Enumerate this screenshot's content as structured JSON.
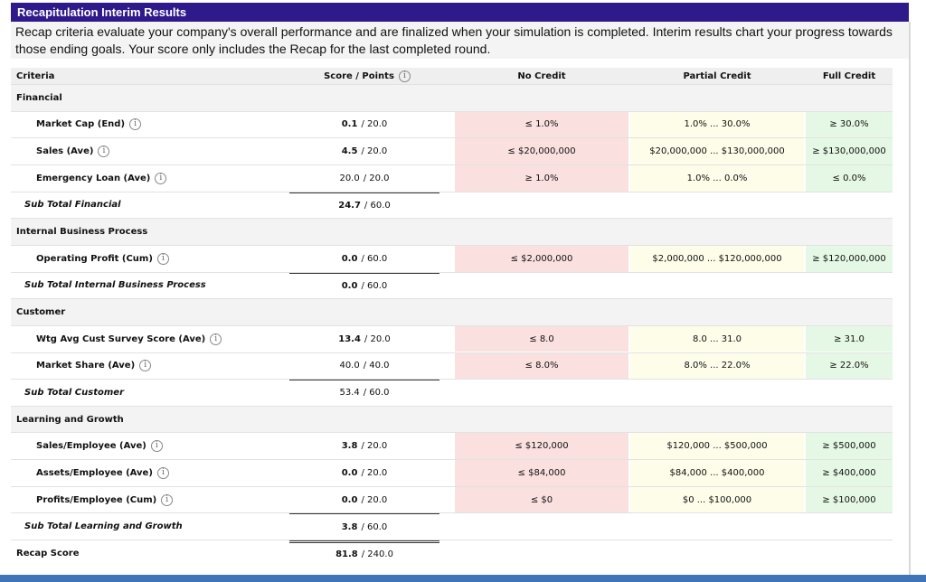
{
  "header": {
    "title": "Recapitulation Interim Results",
    "description": "Recap criteria evaluate your company's overall performance and are finalized when your simulation is completed. Interim results chart your progress towards those ending goals. Your score only includes the Recap for the last completed round."
  },
  "table": {
    "columns": [
      {
        "label": "Criteria",
        "info": false
      },
      {
        "label": "Score / Points",
        "info": true
      },
      {
        "label": "No Credit",
        "info": false
      },
      {
        "label": "Partial Credit",
        "info": false
      },
      {
        "label": "Full Credit",
        "info": false
      }
    ],
    "rows": [
      {
        "kind": "section",
        "criteria": "Financial"
      },
      {
        "kind": "item",
        "criteria": "Market Cap (End)",
        "info": true,
        "score": "0.1",
        "score_bold": true,
        "out_of": "/ 20.0",
        "no_credit": "≤ 1.0%",
        "partial_credit": "1.0% ... 30.0%",
        "full_credit": "≥ 30.0%"
      },
      {
        "kind": "item",
        "criteria": "Sales (Ave)",
        "info": true,
        "score": "4.5",
        "score_bold": true,
        "out_of": "/ 20.0",
        "no_credit": "≤ $20,000,000",
        "partial_credit": "$20,000,000 ... $130,000,000",
        "full_credit": "≥ $130,000,000"
      },
      {
        "kind": "item",
        "criteria": "Emergency Loan (Ave)",
        "info": true,
        "score": "20.0",
        "score_bold": false,
        "out_of": "/ 20.0",
        "no_credit": "≥ 1.0%",
        "partial_credit": "1.0% ... 0.0%",
        "full_credit": "≤ 0.0%"
      },
      {
        "kind": "subtotal",
        "criteria": "Sub Total Financial",
        "score": "24.7",
        "score_bold": true,
        "out_of": "/ 60.0"
      },
      {
        "kind": "section",
        "criteria": "Internal Business Process"
      },
      {
        "kind": "item",
        "criteria": "Operating Profit (Cum)",
        "info": true,
        "score": "0.0",
        "score_bold": true,
        "out_of": "/ 60.0",
        "no_credit": "≤ $2,000,000",
        "partial_credit": "$2,000,000 ... $120,000,000",
        "full_credit": "≥ $120,000,000"
      },
      {
        "kind": "subtotal",
        "criteria": "Sub Total Internal Business Process",
        "score": "0.0",
        "score_bold": true,
        "out_of": "/ 60.0"
      },
      {
        "kind": "section",
        "criteria": "Customer"
      },
      {
        "kind": "item",
        "criteria": "Wtg Avg Cust Survey Score (Ave)",
        "info": true,
        "score": "13.4",
        "score_bold": true,
        "out_of": "/ 20.0",
        "no_credit": "≤ 8.0",
        "partial_credit": "8.0 ... 31.0",
        "full_credit": "≥ 31.0"
      },
      {
        "kind": "item",
        "criteria": "Market Share (Ave)",
        "info": true,
        "score": "40.0",
        "score_bold": false,
        "out_of": "/ 40.0",
        "no_credit": "≤ 8.0%",
        "partial_credit": "8.0% ... 22.0%",
        "full_credit": "≥ 22.0%"
      },
      {
        "kind": "subtotal",
        "criteria": "Sub Total Customer",
        "score": "53.4",
        "score_bold": false,
        "out_of": "/ 60.0"
      },
      {
        "kind": "section",
        "criteria": "Learning and Growth"
      },
      {
        "kind": "item",
        "criteria": "Sales/Employee (Ave)",
        "info": true,
        "score": "3.8",
        "score_bold": true,
        "out_of": "/ 20.0",
        "no_credit": "≤ $120,000",
        "partial_credit": "$120,000 ... $500,000",
        "full_credit": "≥ $500,000"
      },
      {
        "kind": "item",
        "criteria": "Assets/Employee (Ave)",
        "info": true,
        "score": "0.0",
        "score_bold": true,
        "out_of": "/ 20.0",
        "no_credit": "≤ $84,000",
        "partial_credit": "$84,000 ... $400,000",
        "full_credit": "≥ $400,000"
      },
      {
        "kind": "item",
        "criteria": "Profits/Employee (Cum)",
        "info": true,
        "score": "0.0",
        "score_bold": true,
        "out_of": "/ 20.0",
        "no_credit": "≤ $0",
        "partial_credit": "$0 ... $100,000",
        "full_credit": "≥ $100,000"
      },
      {
        "kind": "subtotal",
        "criteria": "Sub Total Learning and Growth",
        "score": "3.8",
        "score_bold": true,
        "out_of": "/ 60.0"
      },
      {
        "kind": "total",
        "criteria": "Recap Score",
        "score": "81.8",
        "score_bold": true,
        "out_of": "/ 240.0"
      }
    ]
  }
}
